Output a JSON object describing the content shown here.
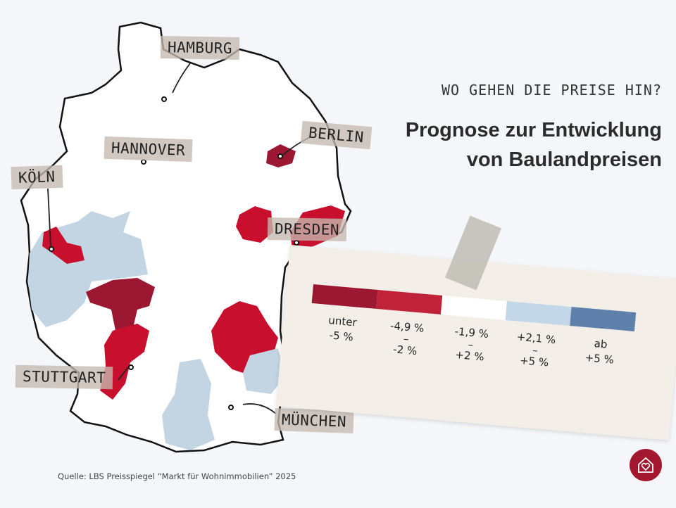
{
  "header": {
    "kicker": "WO GEHEN DIE PREISE HIN?",
    "title_line1": "Prognose zur Entwicklung",
    "title_line2": "von Baulandpreisen"
  },
  "cities": [
    "HAMBURG",
    "BERLIN",
    "HANNOVER",
    "KÖLN",
    "DRESDEN",
    "STUTTGART",
    "MÜNCHEN"
  ],
  "legend": {
    "colors": [
      "#9b1732",
      "#c0223a",
      "#ffffff",
      "#c3d7e8",
      "#5f80aa"
    ],
    "items": [
      {
        "line1": "unter",
        "line2": "",
        "line3": "-5 %"
      },
      {
        "line1": "-4,9 %",
        "line2": "–",
        "line3": "-2 %"
      },
      {
        "line1": "-1,9 %",
        "line2": "–",
        "line3": "+2 %"
      },
      {
        "line1": "+2,1 %",
        "line2": "–",
        "line3": "+5 %"
      },
      {
        "line1": "ab",
        "line2": "",
        "line3": "+5 %"
      }
    ]
  },
  "source": "Quelle: LBS Preisspiegel “Markt für Wohnimmobilien” 2025",
  "logo": "house-heart-icon"
}
